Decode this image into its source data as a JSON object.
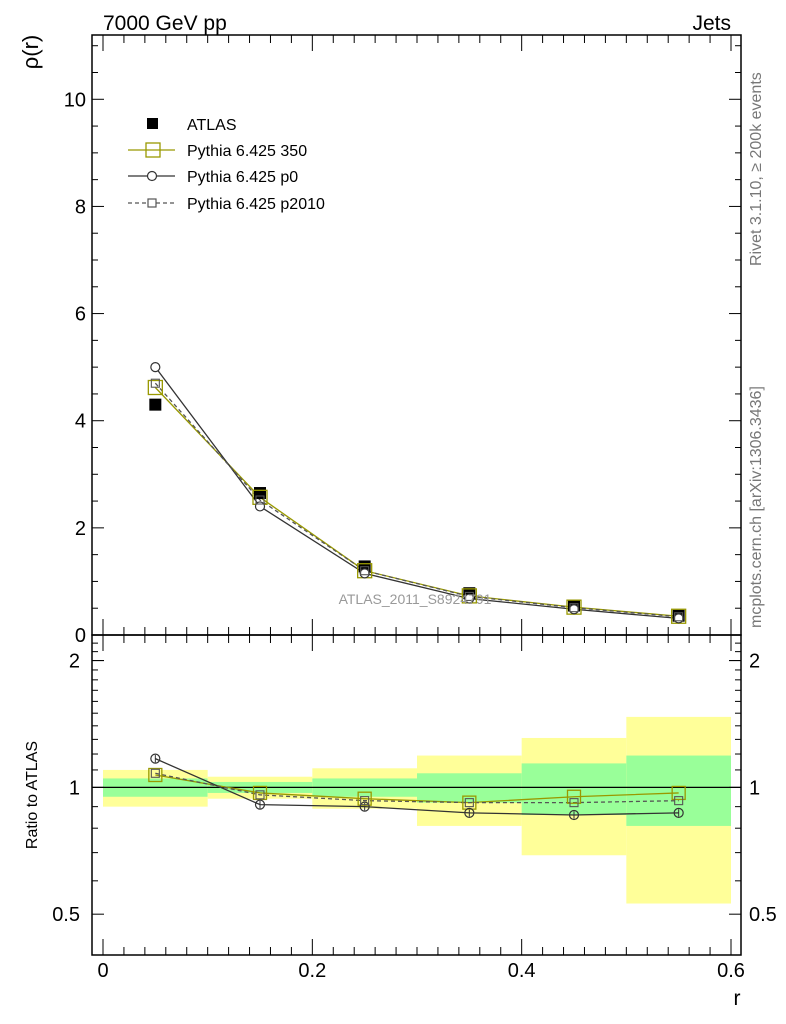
{
  "header": {
    "left": "7000 GeV pp",
    "right": "Jets"
  },
  "side_text": {
    "top": "Rivet 3.1.10, ≥ 200k events",
    "bottom": "mcplots.cern.ch [arXiv:1306.3436]"
  },
  "watermark": "ATLAS_2011_S8924791",
  "chart_data": [
    {
      "type": "line",
      "panel": "main",
      "xlabel": "",
      "ylabel": "ρ(r)",
      "xlim": [
        0,
        0.6
      ],
      "ylim": [
        0,
        11.2
      ],
      "y_ticks": [
        0,
        2,
        4,
        6,
        8,
        10
      ],
      "y_tick_labels": [
        "0",
        "2",
        "4",
        "6",
        "8",
        "10"
      ],
      "x": [
        0.05,
        0.15,
        0.25,
        0.35,
        0.45,
        0.55
      ],
      "legend_position": "top-left",
      "series": [
        {
          "name": "ATLAS",
          "style": "data",
          "color": "#000000",
          "values": [
            4.3,
            2.65,
            1.28,
            0.78,
            0.55,
            0.36
          ]
        },
        {
          "name": "Pythia 6.425 350",
          "style": "open-square-solid",
          "color": "#999900",
          "values": [
            4.62,
            2.57,
            1.2,
            0.73,
            0.52,
            0.35
          ]
        },
        {
          "name": "Pythia 6.425 p0",
          "style": "open-circle-solid",
          "color": "#333333",
          "values": [
            5.0,
            2.4,
            1.15,
            0.68,
            0.48,
            0.31
          ]
        },
        {
          "name": "Pythia 6.425 p2010",
          "style": "open-square-dashed",
          "color": "#555555",
          "values": [
            4.7,
            2.52,
            1.2,
            0.72,
            0.51,
            0.34
          ]
        }
      ]
    },
    {
      "type": "line",
      "panel": "ratio",
      "xlabel": "r",
      "ylabel": "Ratio to ATLAS",
      "xlim": [
        0,
        0.6
      ],
      "ylim": [
        0.4,
        2.3
      ],
      "y_ticks": [
        0.5,
        1,
        2
      ],
      "y_tick_labels": [
        "0.5",
        "1",
        "2"
      ],
      "x_ticks": [
        0,
        0.2,
        0.4,
        0.6
      ],
      "x_tick_labels": [
        "0",
        "0.2",
        "0.4",
        "0.6"
      ],
      "x": [
        0.05,
        0.15,
        0.25,
        0.35,
        0.45,
        0.55
      ],
      "bands": {
        "bins": [
          [
            0,
            0.1
          ],
          [
            0.1,
            0.2
          ],
          [
            0.2,
            0.3
          ],
          [
            0.3,
            0.4
          ],
          [
            0.4,
            0.5
          ],
          [
            0.5,
            0.6
          ]
        ],
        "inner": [
          [
            0.95,
            1.05
          ],
          [
            0.97,
            1.03
          ],
          [
            0.95,
            1.05
          ],
          [
            0.92,
            1.08
          ],
          [
            0.86,
            1.14
          ],
          [
            0.81,
            1.19
          ]
        ],
        "outer": [
          [
            0.9,
            1.1
          ],
          [
            0.94,
            1.06
          ],
          [
            0.89,
            1.11
          ],
          [
            0.81,
            1.19
          ],
          [
            0.69,
            1.31
          ],
          [
            0.53,
            1.47
          ]
        ],
        "inner_color": "#99ff99",
        "outer_color": "#ffff99"
      },
      "series": [
        {
          "name": "Pythia 6.425 350",
          "style": "open-square-solid",
          "color": "#999900",
          "values": [
            1.07,
            0.97,
            0.94,
            0.92,
            0.95,
            0.97
          ]
        },
        {
          "name": "Pythia 6.425 p0",
          "style": "open-circle-solid",
          "color": "#333333",
          "values": [
            1.17,
            0.91,
            0.9,
            0.87,
            0.86,
            0.87
          ]
        },
        {
          "name": "Pythia 6.425 p2010",
          "style": "open-square-dashed",
          "color": "#555555",
          "values": [
            1.08,
            0.96,
            0.93,
            0.92,
            0.92,
            0.93
          ]
        }
      ]
    }
  ]
}
